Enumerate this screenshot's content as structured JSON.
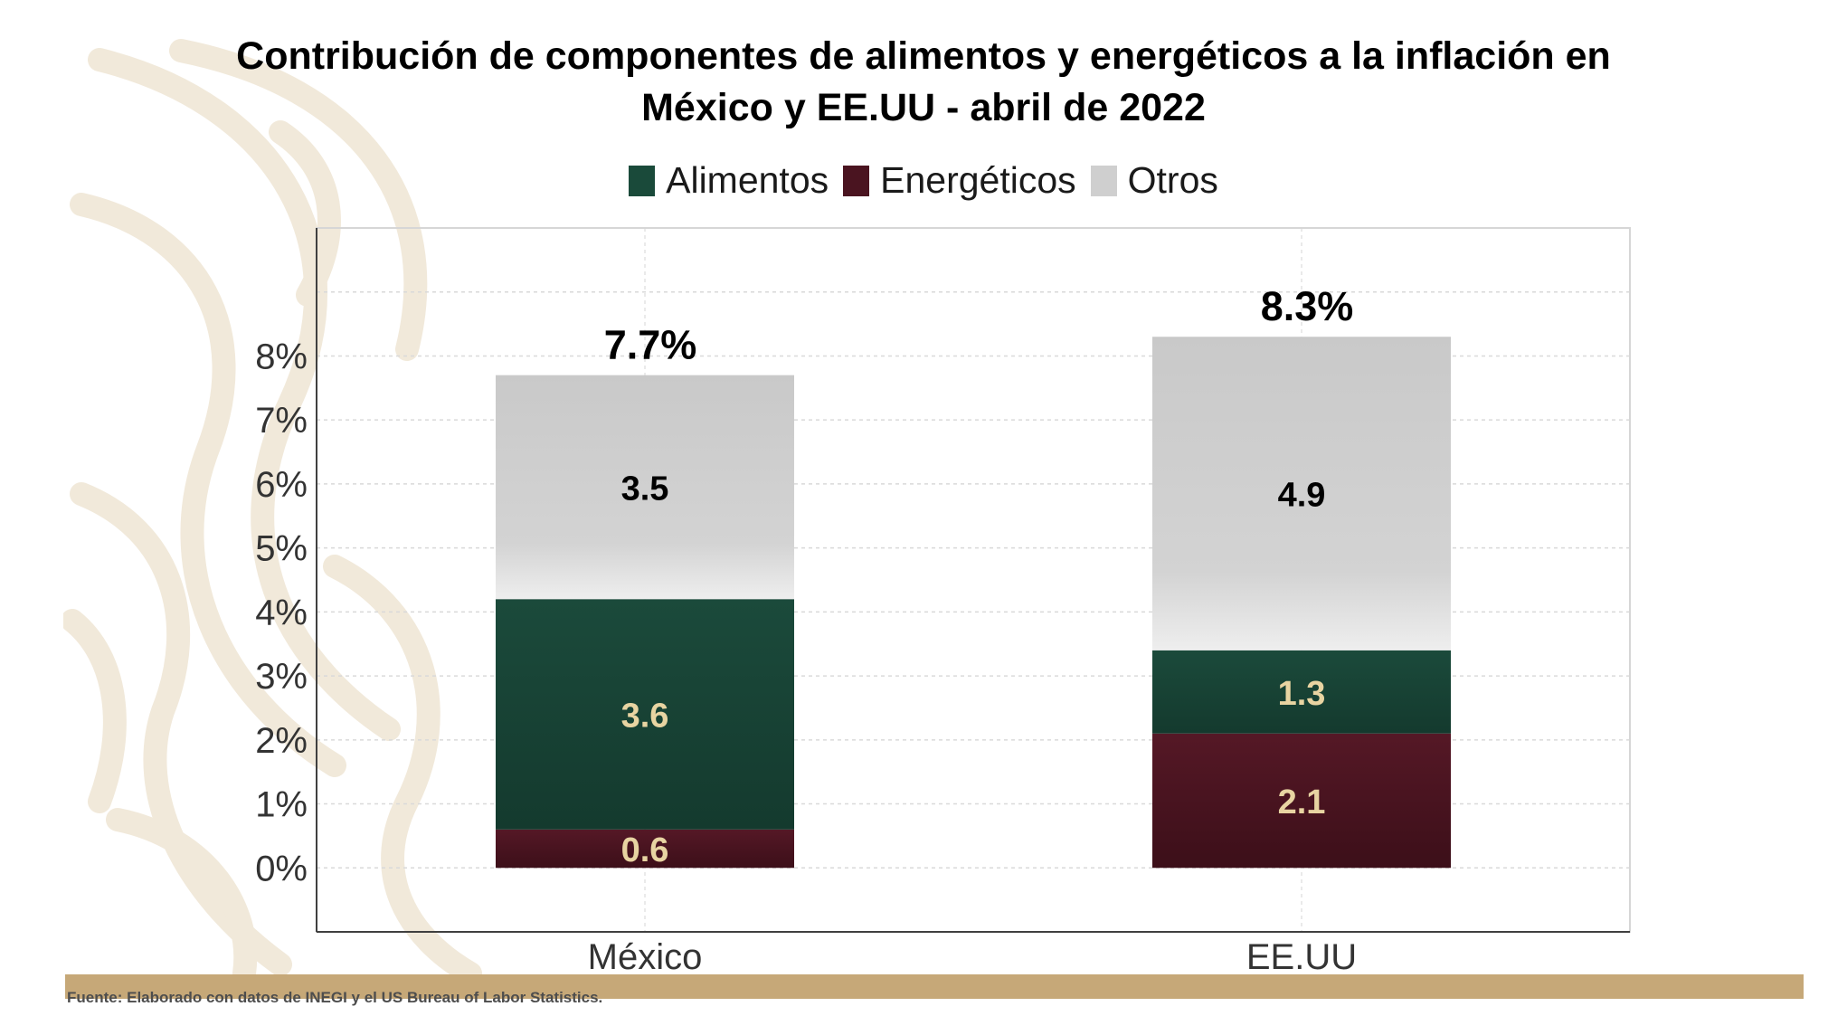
{
  "title_line1": "Contribución de componentes de alimentos y energéticos a la inflación en",
  "title_line2": "México y EE.UU - abril de 2022",
  "source": "Fuente: Elaborado con datos de INEGI y el US Bureau of Labor Statistics.",
  "colors": {
    "alimentos": "#1a4a3a",
    "energeticos": "#4a1420",
    "otros": "#cfcfcf",
    "data_label_dark": "#e8d4a2",
    "footer_bar": "#c6a878",
    "background_pattern": "#f1e9da"
  },
  "chart_data": {
    "type": "bar",
    "stacked": true,
    "categories": [
      "México",
      "EE.UU"
    ],
    "series": [
      {
        "name": "Energéticos",
        "values": [
          0.6,
          2.1
        ],
        "labels": [
          "0.6",
          "2.1"
        ]
      },
      {
        "name": "Alimentos",
        "values": [
          3.6,
          1.3
        ],
        "labels": [
          "3.6",
          "1.3"
        ]
      },
      {
        "name": "Otros",
        "values": [
          3.5,
          4.9
        ],
        "labels": [
          "3.5",
          "4.9"
        ]
      }
    ],
    "totals": [
      7.7,
      8.3
    ],
    "total_labels": [
      "7.7%",
      "8.3%"
    ],
    "legend": [
      "Alimentos",
      "Energéticos",
      "Otros"
    ],
    "legend_position": "top",
    "y_ticks": [
      "0%",
      "1%",
      "2%",
      "3%",
      "4%",
      "5%",
      "6%",
      "7%",
      "8%"
    ],
    "ylim": [
      -1,
      10
    ],
    "grid": true
  }
}
